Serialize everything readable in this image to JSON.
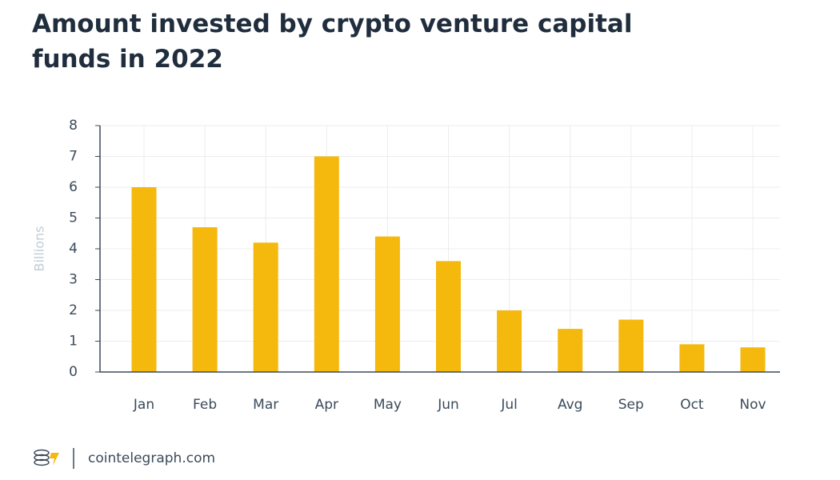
{
  "chart_data": {
    "type": "bar",
    "title": "Amount invested by crypto venture capital funds in 2022",
    "y_label": "Billions",
    "categories": [
      "Jan",
      "Feb",
      "Mar",
      "Apr",
      "May",
      "Jun",
      "Jul",
      "Avg",
      "Sep",
      "Oct",
      "Nov"
    ],
    "values": [
      6.0,
      4.7,
      4.2,
      7.0,
      4.4,
      3.6,
      2.0,
      1.4,
      1.7,
      0.9,
      0.8
    ],
    "color": "#f5b80c",
    "ylim": [
      0,
      8
    ],
    "yticks": [
      0,
      1,
      2,
      3,
      4,
      5,
      6,
      7,
      8
    ],
    "grid": true,
    "source": "cointelegraph.com"
  }
}
